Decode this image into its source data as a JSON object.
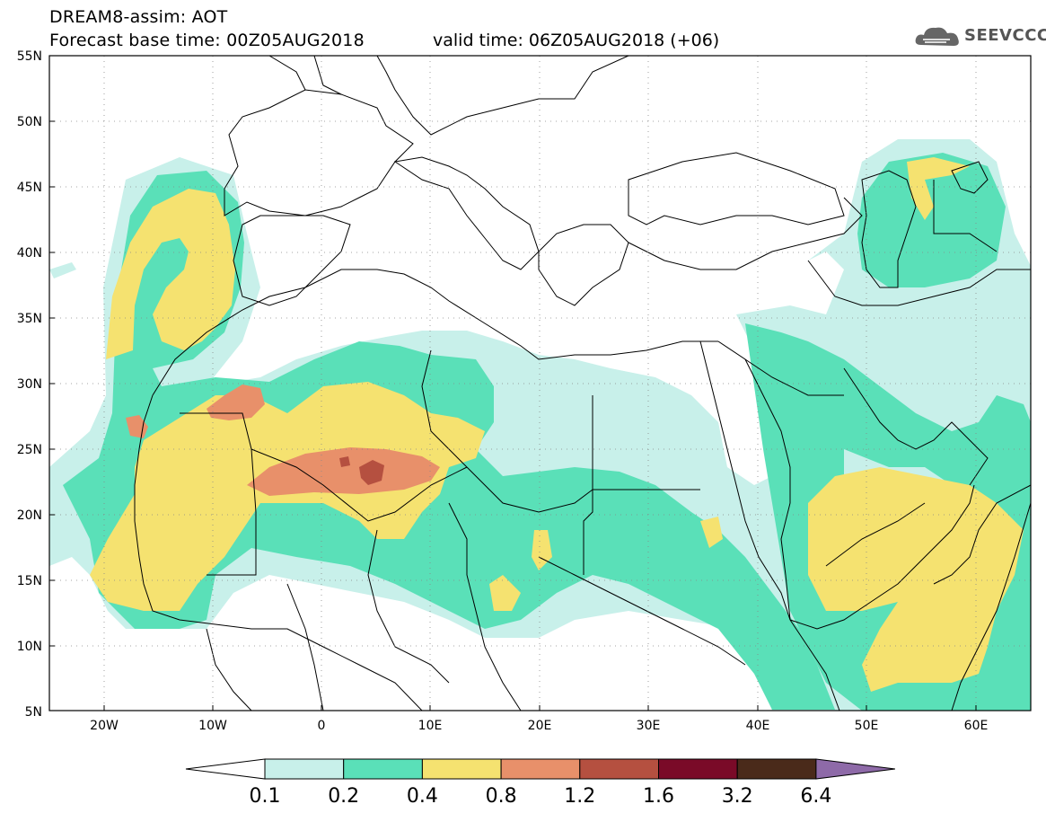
{
  "header": {
    "title": "DREAM8-assim: AOT",
    "base_time": "Forecast base time: 00Z05AUG2018",
    "valid_time": "valid time: 06Z05AUG2018 (+06)"
  },
  "logo": {
    "text": "SEEVCCC",
    "icon": "cloud-icon"
  },
  "axes": {
    "lat_labels": [
      "55N",
      "50N",
      "45N",
      "40N",
      "35N",
      "30N",
      "25N",
      "20N",
      "15N",
      "10N",
      "5N"
    ],
    "lon_labels": [
      "20W",
      "10W",
      "0",
      "10E",
      "20E",
      "30E",
      "40E",
      "50E",
      "60E"
    ]
  },
  "colorbar": {
    "labels": [
      "0.1",
      "0.2",
      "0.4",
      "0.8",
      "1.2",
      "1.6",
      "3.2",
      "6.4"
    ],
    "colors": [
      "#ffffff",
      "#c8f0ea",
      "#5ae0b8",
      "#f5e270",
      "#e8906a",
      "#b55040",
      "#7a0a28",
      "#4a2a1a",
      "#8e6aa8"
    ]
  },
  "map": {
    "lon_range": [
      -25,
      65
    ],
    "lat_range": [
      5,
      55
    ]
  }
}
